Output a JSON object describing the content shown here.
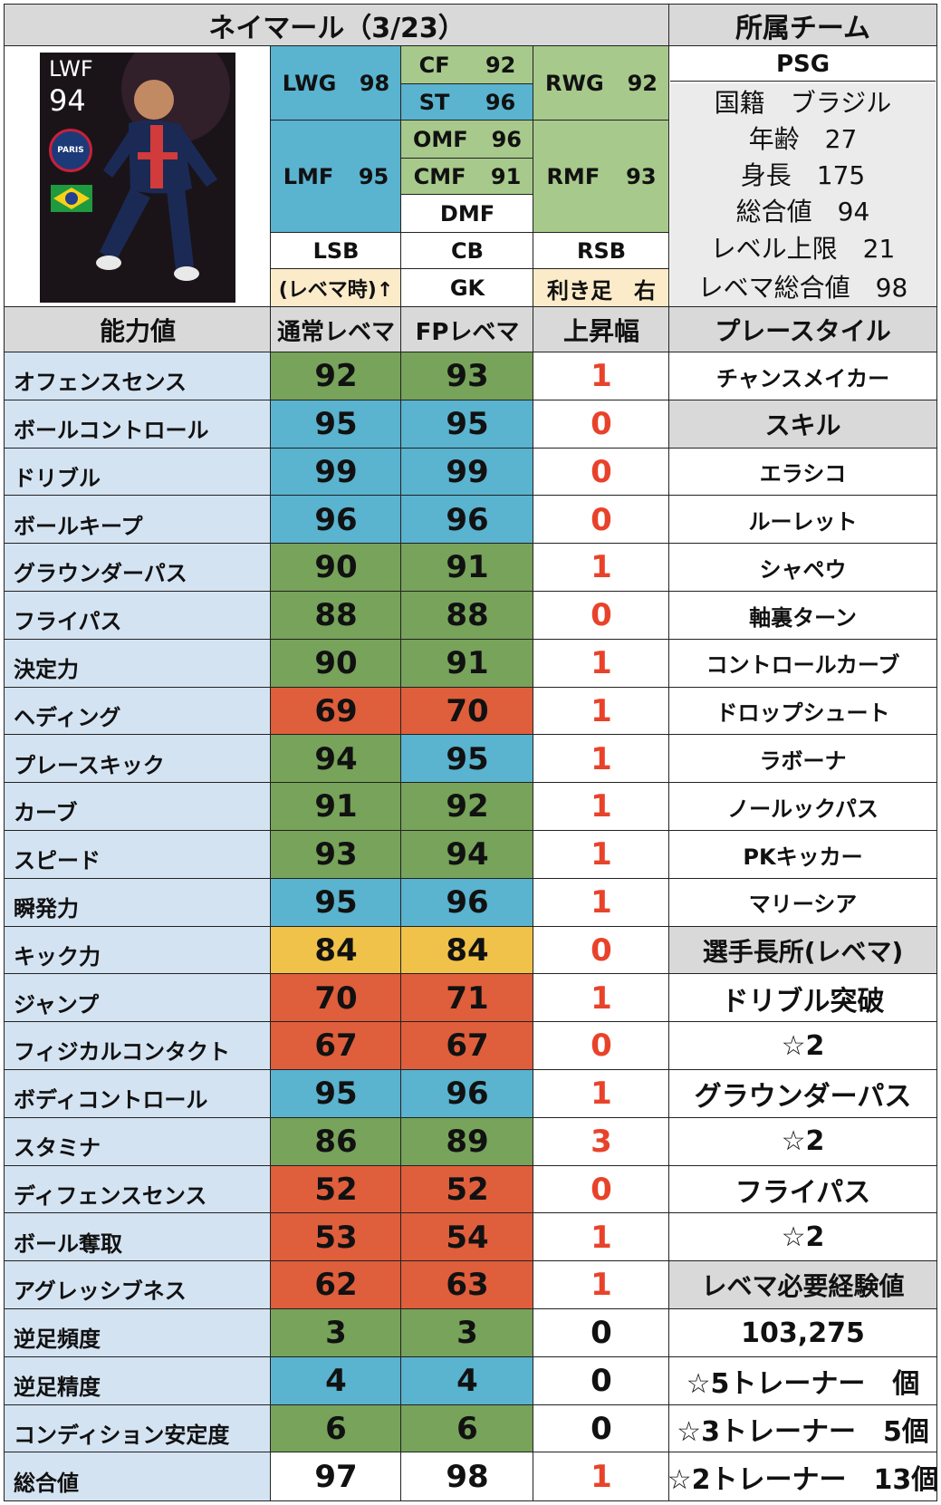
{
  "title": "ネイマール（3/23）",
  "card": {
    "position": "LWF",
    "rating": "94",
    "club_text": "PARIS"
  },
  "positions": {
    "LWG": {
      "label": "LWG",
      "value": "98"
    },
    "CF": {
      "label": "CF",
      "value": "92"
    },
    "ST": {
      "label": "ST",
      "value": "96"
    },
    "RWG": {
      "label": "RWG",
      "value": "92"
    },
    "LMF": {
      "label": "LMF",
      "value": "95"
    },
    "OMF": {
      "label": "OMF",
      "value": "96"
    },
    "CMF": {
      "label": "CMF",
      "value": "91"
    },
    "DMF": {
      "label": "DMF",
      "value": ""
    },
    "RMF": {
      "label": "RMF",
      "value": "93"
    },
    "LSB": "LSB",
    "CB": "CB",
    "RSB": "RSB",
    "GK": "GK",
    "note": "(レベマ時)↑",
    "foot": "利き足　右"
  },
  "team": {
    "header": "所属チーム",
    "club": "PSG",
    "nationality": "国籍　ブラジル",
    "age": "年齢　27",
    "height": "身長　175",
    "overall": "総合値　94",
    "level_cap": "レベル上限　21",
    "max_overall": "レベマ総合値　98"
  },
  "stats_header": {
    "ability": "能力値",
    "normal": "通常レベマ",
    "fp": "FPレベマ",
    "diff": "上昇幅",
    "playstyle": "プレースタイル"
  },
  "stats": [
    {
      "name": "オフェンスセンス",
      "normal": "92",
      "fp": "93",
      "diff": "1",
      "nc": "g",
      "fc": "g"
    },
    {
      "name": "ボールコントロール",
      "normal": "95",
      "fp": "95",
      "diff": "0",
      "nc": "b",
      "fc": "b"
    },
    {
      "name": "ドリブル",
      "normal": "99",
      "fp": "99",
      "diff": "0",
      "nc": "b",
      "fc": "b"
    },
    {
      "name": "ボールキープ",
      "normal": "96",
      "fp": "96",
      "diff": "0",
      "nc": "b",
      "fc": "b"
    },
    {
      "name": "グラウンダーパス",
      "normal": "90",
      "fp": "91",
      "diff": "1",
      "nc": "g",
      "fc": "g"
    },
    {
      "name": "フライパス",
      "normal": "88",
      "fp": "88",
      "diff": "0",
      "nc": "g",
      "fc": "g"
    },
    {
      "name": "決定力",
      "normal": "90",
      "fp": "91",
      "diff": "1",
      "nc": "g",
      "fc": "g"
    },
    {
      "name": "ヘディング",
      "normal": "69",
      "fp": "70",
      "diff": "1",
      "nc": "r",
      "fc": "r"
    },
    {
      "name": "プレースキック",
      "normal": "94",
      "fp": "95",
      "diff": "1",
      "nc": "g",
      "fc": "b"
    },
    {
      "name": "カーブ",
      "normal": "91",
      "fp": "92",
      "diff": "1",
      "nc": "g",
      "fc": "g"
    },
    {
      "name": "スピード",
      "normal": "93",
      "fp": "94",
      "diff": "1",
      "nc": "g",
      "fc": "g"
    },
    {
      "name": "瞬発力",
      "normal": "95",
      "fp": "96",
      "diff": "1",
      "nc": "b",
      "fc": "b"
    },
    {
      "name": "キック力",
      "normal": "84",
      "fp": "84",
      "diff": "0",
      "nc": "y",
      "fc": "y"
    },
    {
      "name": "ジャンプ",
      "normal": "70",
      "fp": "71",
      "diff": "1",
      "nc": "r",
      "fc": "r"
    },
    {
      "name": "フィジカルコンタクト",
      "normal": "67",
      "fp": "67",
      "diff": "0",
      "nc": "r",
      "fc": "r"
    },
    {
      "name": "ボディコントロール",
      "normal": "95",
      "fp": "96",
      "diff": "1",
      "nc": "b",
      "fc": "b"
    },
    {
      "name": "スタミナ",
      "normal": "86",
      "fp": "89",
      "diff": "3",
      "nc": "g",
      "fc": "g"
    },
    {
      "name": "ディフェンスセンス",
      "normal": "52",
      "fp": "52",
      "diff": "0",
      "nc": "r",
      "fc": "r"
    },
    {
      "name": "ボール奪取",
      "normal": "53",
      "fp": "54",
      "diff": "1",
      "nc": "r",
      "fc": "r"
    },
    {
      "name": "アグレッシブネス",
      "normal": "62",
      "fp": "63",
      "diff": "1",
      "nc": "r",
      "fc": "r"
    },
    {
      "name": "逆足頻度",
      "normal": "3",
      "fp": "3",
      "diff": "0",
      "nc": "g",
      "fc": "g"
    },
    {
      "name": "逆足精度",
      "normal": "4",
      "fp": "4",
      "diff": "0",
      "nc": "b",
      "fc": "b"
    },
    {
      "name": "コンディション安定度",
      "normal": "6",
      "fp": "6",
      "diff": "0",
      "nc": "g",
      "fc": "g"
    },
    {
      "name": "総合値",
      "normal": "97",
      "fp": "98",
      "diff": "1",
      "nc": "white",
      "fc": "white"
    }
  ],
  "right_column": [
    {
      "text": "チャンスメイカー",
      "style": "item"
    },
    {
      "text": "スキル",
      "style": "header"
    },
    {
      "text": "エラシコ",
      "style": "item"
    },
    {
      "text": "ルーレット",
      "style": "item"
    },
    {
      "text": "シャペウ",
      "style": "item"
    },
    {
      "text": "軸裏ターン",
      "style": "item"
    },
    {
      "text": "コントロールカーブ",
      "style": "item"
    },
    {
      "text": "ドロップシュート",
      "style": "item"
    },
    {
      "text": "ラボーナ",
      "style": "item"
    },
    {
      "text": "ノールックパス",
      "style": "item"
    },
    {
      "text": "PKキッカー",
      "style": "item"
    },
    {
      "text": "マリーシア",
      "style": "item"
    },
    {
      "text": "選手長所(レベマ)",
      "style": "header"
    },
    {
      "text": "ドリブル突破",
      "style": "big"
    },
    {
      "text": "☆2",
      "style": "big"
    },
    {
      "text": "グラウンダーパス",
      "style": "big"
    },
    {
      "text": "☆2",
      "style": "big"
    },
    {
      "text": "フライパス",
      "style": "big"
    },
    {
      "text": "☆2",
      "style": "big"
    },
    {
      "text": "レベマ必要経験値",
      "style": "header"
    },
    {
      "text": "103,275",
      "style": "big"
    },
    {
      "text": "☆5トレーナー　個",
      "style": "big"
    },
    {
      "text": "☆3トレーナー　5個",
      "style": "big"
    },
    {
      "text": "☆2トレーナー　13個",
      "style": "big"
    }
  ],
  "colors": {
    "green": "#77a35a",
    "blue": "#5ab3cf",
    "red": "#df5e3c",
    "yellow": "#f0c24a",
    "light_green": "#a7c98c",
    "light_blue": "#d4e3f2",
    "header_gray": "#d9d9d9",
    "diff_red": "#e8432a"
  }
}
